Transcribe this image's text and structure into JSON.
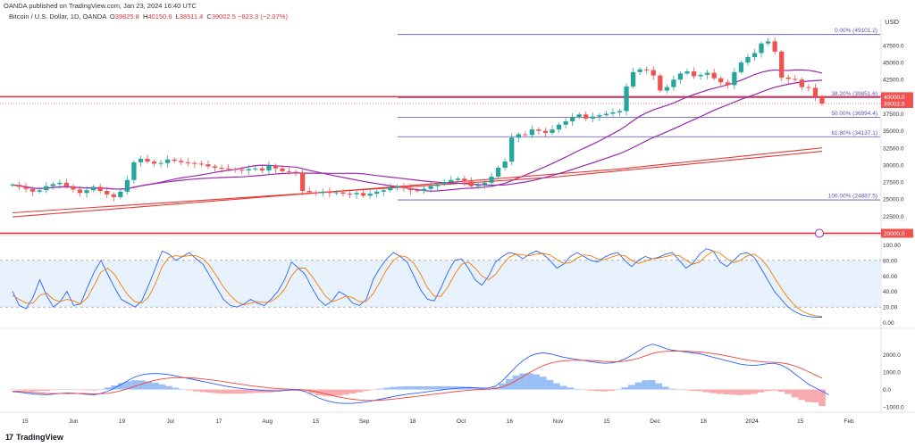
{
  "header": {
    "published": "OANDA published on TradingView.com, Jan 23, 2024 16:40 UTC",
    "symbol": "Bitcoin / U.S. Dollar, 1D, OANDA",
    "o_label": "O",
    "o": "39825.8",
    "h_label": "H",
    "h": "40150.6",
    "l_label": "L",
    "l": "38511.4",
    "c_label": "C",
    "c": "39002.5",
    "change": "−823.3 (−2.07%)"
  },
  "brand": {
    "logo": "17",
    "name": "TradingView"
  },
  "currency": "USD",
  "colors": {
    "up": "#26a69a",
    "down": "#ef5350",
    "sma_purple": "#9c27b0",
    "sma_red": "#e53935",
    "fib": "#5b4fb1",
    "support": "#e0323f",
    "price_label": "#ef5350",
    "stoch_k": "#2962ff",
    "stoch_d": "#f57c00",
    "macd": "#2962ff",
    "signal": "#f44336",
    "hist_pos": "#2962ff",
    "hist_neg": "#ef5350"
  },
  "chart_data": [
    {
      "type": "candlestick",
      "title": "Bitcoin / U.S. Dollar, 1D, OANDA",
      "ylim": [
        21500,
        50500
      ],
      "y_ticks": [
        "22500.0",
        "25000.0",
        "27500.0",
        "30000.0",
        "32500.0",
        "35000.0",
        "37500.0",
        "40000.0",
        "42500.0",
        "45000.0",
        "47500.0"
      ],
      "x_ticks": [
        "15",
        "Jun",
        "19",
        "Jul",
        "17",
        "Aug",
        "15",
        "Sep",
        "18",
        "Oct",
        "16",
        "Nov",
        "15",
        "Dec",
        "18",
        "2024",
        "15",
        "Feb"
      ],
      "price_series": [
        27100,
        26800,
        26500,
        26100,
        26300,
        26900,
        27200,
        27400,
        26900,
        26400,
        25900,
        26300,
        26800,
        26200,
        25700,
        25300,
        26100,
        27800,
        30400,
        30900,
        30500,
        30200,
        30300,
        30800,
        30600,
        30400,
        30300,
        30200,
        30100,
        29800,
        29600,
        29500,
        29400,
        29300,
        29200,
        29400,
        29500,
        29200,
        29900,
        29500,
        29100,
        29000,
        28900,
        26200,
        26000,
        25900,
        26100,
        25900,
        26000,
        25800,
        25700,
        25900,
        25500,
        25800,
        26100,
        26300,
        26700,
        26900,
        26600,
        26300,
        26200,
        26500,
        26900,
        27200,
        27500,
        27800,
        28000,
        27600,
        26900,
        27100,
        27400,
        28300,
        29600,
        30500,
        34000,
        34500,
        34400,
        35200,
        35000,
        34700,
        35200,
        35900,
        36400,
        37000,
        37400,
        36800,
        37100,
        37300,
        37500,
        37700,
        37900,
        41500,
        43600,
        44000,
        43900,
        43100,
        40900,
        41400,
        42500,
        43400,
        43700,
        43000,
        43200,
        43500,
        42700,
        42100,
        41700,
        43600,
        45000,
        45800,
        46400,
        47800,
        48100,
        46600,
        42800,
        42600,
        42500,
        41400,
        41300,
        40000,
        39000
      ],
      "fib_levels": [
        {
          "label": "0.00% (49101.2)",
          "value": 49101.2
        },
        {
          "label": "38.20% (39851.6)",
          "value": 39851.6
        },
        {
          "label": "50.00% (36994.4)",
          "value": 36994.4
        },
        {
          "label": "61.80% (34137.1)",
          "value": 34137.1
        },
        {
          "label": "100.00% (24887.5)",
          "value": 24887.5
        }
      ],
      "support_levels": [
        40000.0,
        20000.0
      ],
      "price_labels": [
        {
          "text": "40000.0",
          "value": 40000
        },
        {
          "text": "39002.5",
          "value": 39002.5
        },
        {
          "text": "20000.0",
          "value": 20000
        }
      ]
    },
    {
      "type": "line",
      "title": "Stochastic",
      "ylim": [
        -5,
        105
      ],
      "y_ticks": [
        "100.00",
        "80.00",
        "60.00",
        "40.00",
        "20.00",
        "0.00"
      ],
      "band": [
        20,
        80
      ],
      "series": [
        {
          "values": [
            40,
            22,
            18,
            32,
            55,
            35,
            20,
            27,
            40,
            22,
            24,
            45,
            65,
            80,
            62,
            45,
            30,
            25,
            20,
            28,
            48,
            70,
            92,
            88,
            80,
            85,
            90,
            82,
            75,
            60,
            45,
            30,
            22,
            20,
            24,
            30,
            25,
            22,
            30,
            40,
            55,
            78,
            70,
            62,
            45,
            30,
            22,
            28,
            40,
            35,
            25,
            22,
            30,
            55,
            70,
            82,
            90,
            85,
            78,
            60,
            42,
            30,
            28,
            45,
            65,
            80,
            82,
            70,
            55,
            48,
            60,
            78,
            85,
            90,
            88,
            82,
            88,
            92,
            88,
            80,
            70,
            75,
            85,
            90,
            85,
            80,
            78,
            84,
            88,
            90,
            80,
            72,
            80,
            85,
            82,
            84,
            88,
            90,
            80,
            70,
            76,
            88,
            95,
            92,
            78,
            72,
            80,
            88,
            90,
            84,
            70,
            55,
            40,
            30,
            20,
            14,
            10,
            8,
            7,
            7
          ]
        },
        {
          "values": [
            35,
            30,
            25,
            25,
            35,
            38,
            30,
            27,
            30,
            28,
            24,
            32,
            48,
            65,
            70,
            62,
            48,
            35,
            27,
            25,
            33,
            50,
            72,
            84,
            86,
            85,
            86,
            86,
            82,
            73,
            60,
            46,
            35,
            27,
            23,
            25,
            27,
            26,
            27,
            33,
            43,
            60,
            70,
            70,
            60,
            47,
            34,
            27,
            30,
            34,
            32,
            27,
            27,
            37,
            52,
            68,
            80,
            86,
            84,
            76,
            62,
            45,
            34,
            34,
            46,
            62,
            75,
            78,
            70,
            60,
            55,
            62,
            74,
            84,
            88,
            87,
            86,
            88,
            89,
            87,
            81,
            76,
            77,
            83,
            87,
            86,
            82,
            81,
            84,
            87,
            86,
            80,
            76,
            79,
            82,
            83,
            85,
            87,
            86,
            80,
            75,
            78,
            86,
            92,
            89,
            82,
            77,
            80,
            86,
            88,
            82,
            72,
            58,
            44,
            32,
            22,
            15,
            11,
            9,
            8
          ]
        }
      ]
    },
    {
      "type": "line",
      "title": "MACD",
      "ylim": [
        -1300,
        3300
      ],
      "y_ticks": [
        "2000.0",
        "1000.0",
        "0.0",
        "−1000.0"
      ],
      "series": [
        {
          "values": [
            -120,
            -150,
            -200,
            -250,
            -280,
            -300,
            -260,
            -220,
            -200,
            -210,
            -240,
            -280,
            -300,
            -220,
            -100,
            80,
            300,
            520,
            720,
            840,
            900,
            920,
            900,
            850,
            780,
            700,
            620,
            540,
            460,
            380,
            300,
            220,
            150,
            90,
            40,
            10,
            -20,
            -60,
            -80,
            -80,
            -60,
            -20,
            -30,
            -120,
            -300,
            -480,
            -620,
            -720,
            -780,
            -800,
            -790,
            -760,
            -700,
            -640,
            -560,
            -480,
            -400,
            -330,
            -270,
            -220,
            -180,
            -130,
            -80,
            -30,
            20,
            60,
            90,
            110,
            100,
            80,
            90,
            200,
            500,
            900,
            1300,
            1650,
            1900,
            2050,
            2100,
            2050,
            1950,
            1850,
            1780,
            1720,
            1660,
            1600,
            1540,
            1500,
            1520,
            1600,
            1750,
            1950,
            2200,
            2450,
            2600,
            2500,
            2350,
            2250,
            2200,
            2150,
            2100,
            2050,
            1950,
            1850,
            1750,
            1650,
            1550,
            1450,
            1400,
            1380,
            1420,
            1480,
            1500,
            1400,
            1200,
            900,
            600,
            300,
            100,
            -100,
            -300
          ]
        },
        {
          "values": [
            -100,
            -110,
            -130,
            -160,
            -190,
            -220,
            -230,
            -230,
            -225,
            -222,
            -225,
            -236,
            -249,
            -243,
            -215,
            -156,
            -65,
            52,
            186,
            317,
            434,
            531,
            605,
            654,
            679,
            683,
            670,
            644,
            607,
            562,
            510,
            452,
            392,
            331,
            273,
            220,
            172,
            125,
            84,
            51,
            28,
            19,
            9,
            -17,
            -73,
            -155,
            -248,
            -342,
            -429,
            -503,
            -561,
            -600,
            -620,
            -624,
            -611,
            -585,
            -548,
            -504,
            -457,
            -410,
            -364,
            -317,
            -270,
            -222,
            -173,
            -126,
            -83,
            -44,
            -15,
            4,
            21,
            57,
            146,
            297,
            498,
            728,
            962,
            1180,
            1364,
            1501,
            1591,
            1643,
            1670,
            1680,
            1676,
            1661,
            1637,
            1610,
            1592,
            1593,
            1625,
            1690,
            1792,
            1924,
            2059,
            2147,
            2188,
            2200,
            2200,
            2190,
            2172,
            2148,
            2108,
            2057,
            1996,
            1927,
            1851,
            1771,
            1697,
            1634,
            1591,
            1569,
            1555,
            1524,
            1459,
            1347,
            1198,
            1018,
            835,
            648
          ]
        },
        {
          "values": [
            -20,
            -40,
            -70,
            -90,
            -90,
            -80,
            -30,
            10,
            25,
            12,
            -15,
            -44,
            -51,
            23,
            115,
            236,
            365,
            468,
            534,
            523,
            466,
            389,
            295,
            196,
            101,
            17,
            -50,
            -104,
            -147,
            -182,
            -210,
            -232,
            -242,
            -241,
            -233,
            -210,
            -192,
            -185,
            -164,
            -131,
            -88,
            -39,
            -39,
            -103,
            -227,
            -325,
            -372,
            -378,
            -351,
            -297,
            -229,
            -160,
            -80,
            -16,
            51,
            105,
            148,
            174,
            187,
            190,
            184,
            187,
            190,
            192,
            193,
            186,
            173,
            154,
            115,
            76,
            69,
            143,
            354,
            603,
            802,
            922,
            938,
            870,
            736,
            549,
            359,
            207,
            110,
            40,
            -16,
            -61,
            -97,
            -110,
            -72,
            7,
            125,
            260,
            408,
            526,
            541,
            353,
            162,
            50,
            0,
            -40,
            -72,
            -98,
            -158,
            -207,
            -246,
            -277,
            -301,
            -321,
            -297,
            -254,
            -171,
            -89,
            -55,
            -124,
            -259,
            -447,
            -598,
            -718,
            -735,
            -948
          ]
        }
      ]
    }
  ]
}
